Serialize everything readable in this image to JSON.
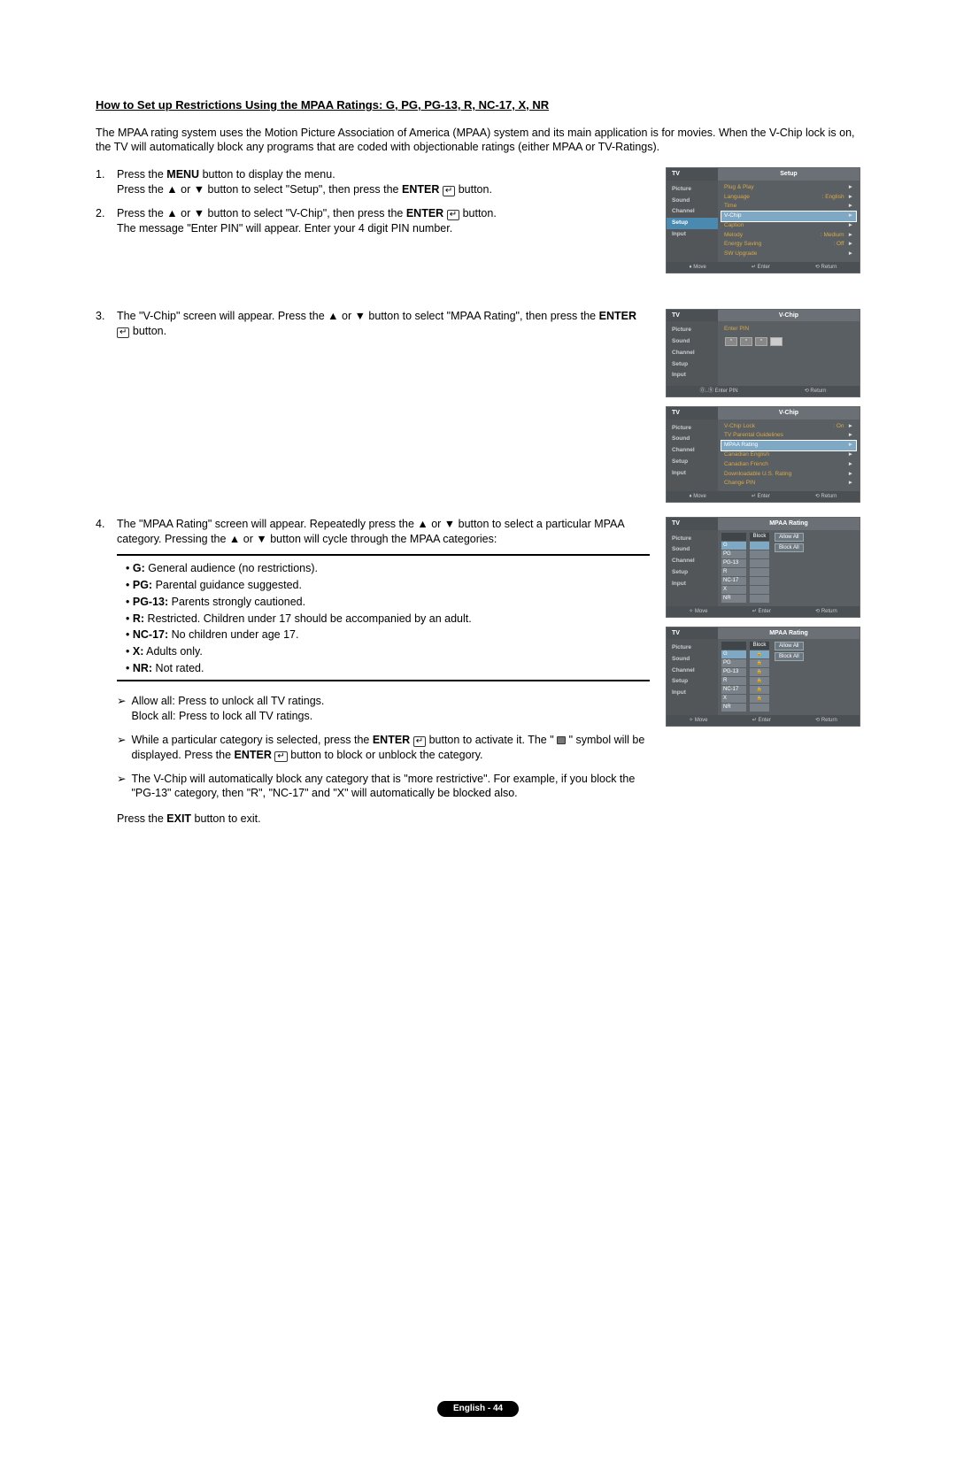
{
  "title": "How to Set up Restrictions Using the MPAA Ratings: G, PG, PG-13, R, NC-17, X, NR",
  "intro": "The MPAA rating system uses the Motion Picture Association of America (MPAA) system and its main application is for movies. When the V-Chip lock is on, the TV will automatically block any programs that are coded with objectionable ratings (either MPAA or TV-Ratings).",
  "step1a": "Press the ",
  "step1b": "MENU",
  "step1c": " button to display the menu.",
  "step1d": "Press the ▲ or ▼ button to select \"Setup\", then press the ",
  "step1e": "ENTER",
  "step1f": " button.",
  "step2a": "Press the ▲ or ▼ button to select \"V-Chip\", then press the ",
  "step2b": "ENTER",
  "step2c": " button.",
  "step2d": "The message \"Enter PIN\" will appear. Enter your 4 digit PIN number.",
  "step3a": "The \"V-Chip\" screen will appear. Press the ▲ or ▼ button to select \"MPAA Rating\", then press the ",
  "step3b": "ENTER",
  "step3c": " button.",
  "step4a": "The \"MPAA Rating\" screen will appear. Repeatedly press the ▲ or ▼ button to select a particular MPAA category. Pressing the ▲ or ▼ button will cycle through the MPAA categories:",
  "cat_g": "G:",
  "cat_g_d": " General audience (no restrictions).",
  "cat_pg": "PG:",
  "cat_pg_d": " Parental guidance suggested.",
  "cat_pg13": "PG-13:",
  "cat_pg13_d": " Parents strongly cautioned.",
  "cat_r": "R:",
  "cat_r_d": " Restricted. Children under 17 should be accompanied by an adult.",
  "cat_nc17": "NC-17:",
  "cat_nc17_d": " No children under age 17.",
  "cat_x": "X:",
  "cat_x_d": " Adults only.",
  "cat_nr": "NR:",
  "cat_nr_d": " Not rated.",
  "note1a": "Allow all: Press to unlock all TV ratings.",
  "note1b": "Block all: Press to lock all TV ratings.",
  "note2a": "While a particular category is selected, press the ",
  "note2b": "ENTER",
  "note2c": " button to activate it. The \" ",
  "note2d": " \" symbol will be displayed. Press the ",
  "note2e": "ENTER",
  "note2f": " button to block or unblock the category.",
  "note3": "The V-Chip will automatically block any category that is \"more restrictive\". For example, if you block the \"PG-13\" category, then \"R\", \"NC-17\" and \"X\" will automatically be blocked also.",
  "exit_a": "Press the ",
  "exit_b": "EXIT",
  "exit_c": " button to exit.",
  "pagefoot": "English - 44",
  "tv": {
    "tv_label": "TV",
    "side": [
      "Picture",
      "Sound",
      "Channel",
      "Setup",
      "Input"
    ],
    "s1_title": "Setup",
    "s1_rows": [
      {
        "l": "Plug & Play",
        "v": "",
        "a": "►"
      },
      {
        "l": "Language",
        "v": ": English",
        "a": "►"
      },
      {
        "l": "Time",
        "v": "",
        "a": "►"
      },
      {
        "l": "V-Chip",
        "v": "",
        "a": "►",
        "hi": true
      },
      {
        "l": "Caption",
        "v": "",
        "a": "►"
      },
      {
        "l": "Melody",
        "v": ": Medium",
        "a": "►"
      },
      {
        "l": "Energy Saving",
        "v": ": Off",
        "a": "►"
      },
      {
        "l": "SW Upgrade",
        "v": "",
        "a": "►"
      }
    ],
    "s2_title": "V-Chip",
    "s2_enter": "Enter PIN",
    "s3_title": "V-Chip",
    "s3_rows": [
      {
        "l": "V-Chip Lock",
        "v": ": On",
        "a": "►"
      },
      {
        "l": "TV Parental Guidelines",
        "v": "",
        "a": "►"
      },
      {
        "l": "MPAA Rating",
        "v": "",
        "a": "►",
        "hi": true
      },
      {
        "l": "Canadian English",
        "v": "",
        "a": "►"
      },
      {
        "l": "Canadian French",
        "v": "",
        "a": "►"
      },
      {
        "l": "Downloadable U.S. Rating",
        "v": "",
        "a": "►",
        "dim": true
      },
      {
        "l": "Change PIN",
        "v": "",
        "a": "►"
      }
    ],
    "s4_title": "MPAA Rating",
    "allow": "Allow All",
    "block": "Block All",
    "blockhdr": "Block",
    "ratings": [
      "G",
      "PG",
      "PG-13",
      "R",
      "NC-17",
      "X",
      "NR"
    ],
    "ftr_move": "Move",
    "ftr_enter": "Enter",
    "ftr_return": "Return",
    "ftr_pin": "Enter PIN"
  }
}
